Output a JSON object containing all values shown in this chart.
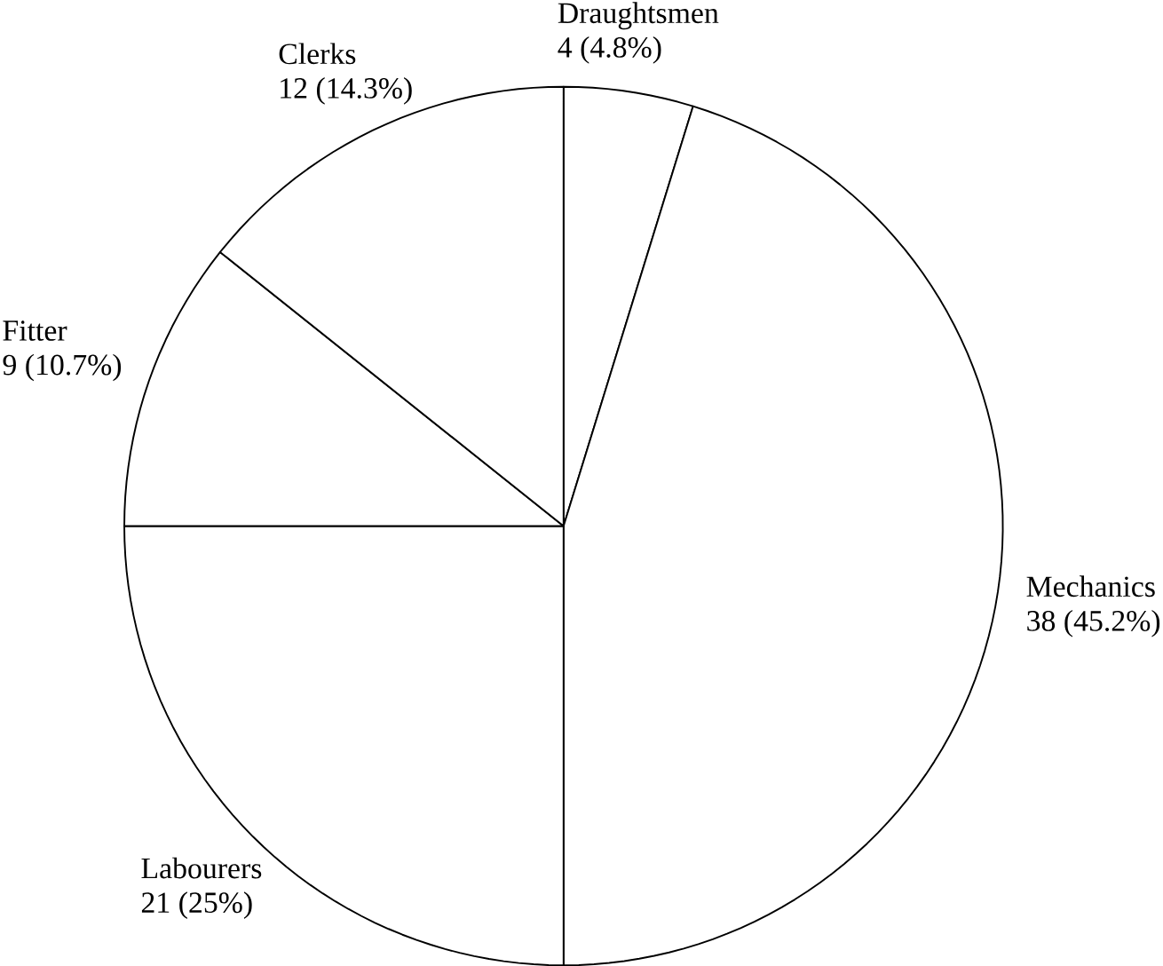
{
  "chart_data": {
    "type": "pie",
    "categories": [
      "Draughtsmen",
      "Mechanics",
      "Labourers",
      "Fitter",
      "Clerks"
    ],
    "values": [
      4,
      38,
      21,
      9,
      12
    ],
    "value_labels": [
      "4 (4.8%)",
      "38 (45.2%)",
      "21 (25%)",
      "9 (10.7%)",
      "12 (14.3%)"
    ],
    "colors": [
      "#ffffff",
      "#ffffff",
      "#ffffff",
      "#ffffff",
      "#ffffff"
    ]
  }
}
